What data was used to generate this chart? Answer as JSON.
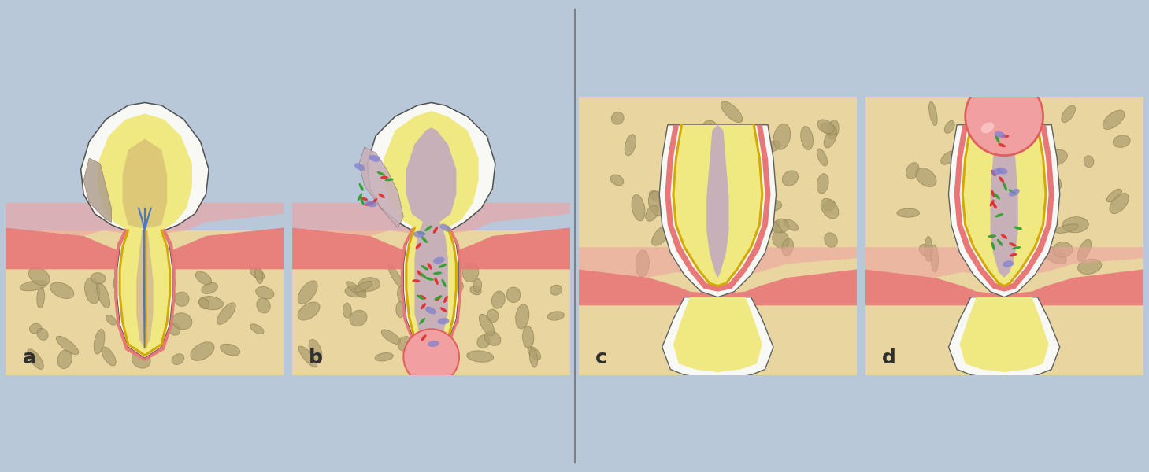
{
  "bg_color": "#b8c8d8",
  "bone_color": "#e8d5a0",
  "stone_color": "#b0a070",
  "stone_shadow": "#908050",
  "gum_color": "#e87878",
  "gum_light": "#f0a0a0",
  "dentin_color": "#f0e880",
  "enamel_color": "#f8f8f5",
  "pdl_color": "#e87878",
  "nerve_color": "#4878c8",
  "artery_color": "#d4aa00",
  "cyst_fill": "#f0a0a0",
  "cyst_edge": "#e06060",
  "bacteria_red": "#e03030",
  "bacteria_green": "#30a030",
  "bacteria_blue": "#8080d0",
  "necrosis_color": "#c8b0b8",
  "plaque_color": "#b0a090",
  "label_color": "#303030",
  "divider_color": "#808080",
  "panel_labels": [
    "a",
    "b",
    "c",
    "d"
  ]
}
